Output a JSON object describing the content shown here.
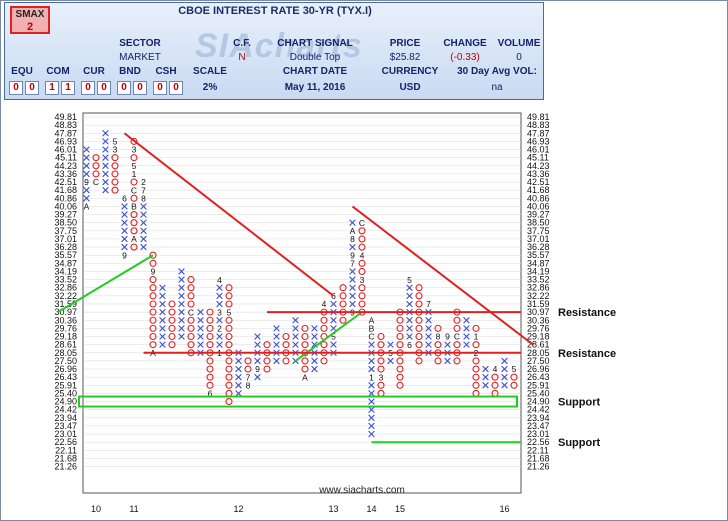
{
  "header": {
    "title": "CBOE INTEREST RATE 30-YR (TYX.I)",
    "smax_label": "SMAX",
    "smax_value": "2",
    "sector_label": "SECTOR",
    "sector_value": "MARKET",
    "cf_label": "C.F.",
    "cf_value": "N",
    "signal_label": "CHART SIGNAL",
    "signal_value": "Double Top",
    "price_label": "PRICE",
    "price_value": "$25.82",
    "change_label": "CHANGE",
    "change_value": "(-0.33)",
    "volume_label": "VOLUME",
    "volume_value": "0",
    "equ_label": "EQU",
    "com_label": "COM",
    "cur_label": "CUR",
    "bnd_label": "BND",
    "csh_label": "CSH",
    "scale_label": "SCALE",
    "scale_value": "2%",
    "chart_date_label": "CHART DATE",
    "chart_date_value": "May 11, 2016",
    "currency_label": "CURRENCY",
    "currency_value": "USD",
    "avgvol_label": "30 Day Avg VOL:",
    "avgvol_value": "na",
    "rank_cells": [
      "0",
      "0",
      "1",
      "1",
      "0",
      "0",
      "0",
      "0",
      "0",
      "0"
    ],
    "watermark": "SIAcharts",
    "colors": {
      "header_text": "#12246a",
      "smax_border": "#e02020",
      "value_red": "#c00000"
    }
  },
  "chart_data": {
    "type": "point-and-figure",
    "box_size_percent": 2,
    "price_levels": [
      "49.81",
      "48.83",
      "47.87",
      "46.93",
      "46.01",
      "45.11",
      "44.23",
      "43.36",
      "42.51",
      "41.68",
      "40.86",
      "40.06",
      "39.27",
      "38.50",
      "37.75",
      "37.01",
      "36.28",
      "35.57",
      "34.87",
      "34.19",
      "33.52",
      "32.86",
      "32.22",
      "31.59",
      "30.97",
      "30.36",
      "29.76",
      "29.18",
      "28.61",
      "28.05",
      "27.50",
      "26.96",
      "26.43",
      "25.91",
      "25.40",
      "24.90",
      "24.42",
      "23.94",
      "23.47",
      "23.01",
      "22.56",
      "22.11",
      "21.68",
      "21.26"
    ],
    "x_labels": [
      {
        "col": 1,
        "label": "10"
      },
      {
        "col": 5,
        "label": "11"
      },
      {
        "col": 16,
        "label": "12"
      },
      {
        "col": 26,
        "label": "13"
      },
      {
        "col": 30,
        "label": "14"
      },
      {
        "col": 33,
        "label": "15"
      },
      {
        "col": 44,
        "label": "16"
      }
    ],
    "columns": [
      {
        "col": 0,
        "type": "X",
        "low": 40.06,
        "high": 46.01,
        "labels": [
          {
            "price": 40.06,
            "text": "A"
          },
          {
            "price": 42.51,
            "text": "9"
          }
        ]
      },
      {
        "col": 1,
        "type": "O",
        "low": 42.51,
        "high": 45.11,
        "labels": [
          {
            "price": 42.51,
            "text": "C"
          }
        ]
      },
      {
        "col": 2,
        "type": "X",
        "low": 41.68,
        "high": 47.87
      },
      {
        "col": 3,
        "type": "O",
        "low": 41.68,
        "high": 46.93,
        "labels": [
          {
            "price": 46.93,
            "text": "5"
          },
          {
            "price": 46.01,
            "text": "3"
          }
        ]
      },
      {
        "col": 4,
        "type": "X",
        "low": 35.57,
        "high": 40.86,
        "labels": [
          {
            "price": 40.86,
            "text": "6"
          },
          {
            "price": 35.57,
            "text": "9"
          }
        ]
      },
      {
        "col": 5,
        "type": "O",
        "low": 36.28,
        "high": 46.93,
        "labels": [
          {
            "price": 46.01,
            "text": "3"
          },
          {
            "price": 44.23,
            "text": "5"
          },
          {
            "price": 43.36,
            "text": "1"
          },
          {
            "price": 41.68,
            "text": "C"
          },
          {
            "price": 40.06,
            "text": "B"
          },
          {
            "price": 37.01,
            "text": "A"
          }
        ]
      },
      {
        "col": 6,
        "type": "X",
        "low": 36.28,
        "high": 42.51,
        "labels": [
          {
            "price": 42.51,
            "text": "2"
          },
          {
            "price": 41.68,
            "text": "7"
          },
          {
            "price": 40.86,
            "text": "8"
          }
        ]
      },
      {
        "col": 7,
        "type": "O",
        "low": 28.05,
        "high": 35.57,
        "labels": [
          {
            "price": 34.19,
            "text": "9"
          },
          {
            "price": 28.05,
            "text": "A"
          }
        ]
      },
      {
        "col": 8,
        "type": "X",
        "low": 28.61,
        "high": 32.86
      },
      {
        "col": 9,
        "type": "O",
        "low": 28.61,
        "high": 31.59
      },
      {
        "col": 10,
        "type": "X",
        "low": 29.18,
        "high": 34.19
      },
      {
        "col": 11,
        "type": "O",
        "low": 28.05,
        "high": 33.52,
        "labels": [
          {
            "price": 30.97,
            "text": "C"
          }
        ]
      },
      {
        "col": 12,
        "type": "X",
        "low": 28.05,
        "high": 30.97
      },
      {
        "col": 13,
        "type": "O",
        "low": 25.4,
        "high": 30.97,
        "labels": [
          {
            "price": 25.4,
            "text": "6"
          }
        ]
      },
      {
        "col": 14,
        "type": "X",
        "low": 28.05,
        "high": 33.52,
        "labels": [
          {
            "price": 33.52,
            "text": "4"
          },
          {
            "price": 30.97,
            "text": "3"
          },
          {
            "price": 29.76,
            "text": "2"
          },
          {
            "price": 28.05,
            "text": "1"
          }
        ]
      },
      {
        "col": 15,
        "type": "O",
        "low": 24.9,
        "high": 32.86,
        "labels": [
          {
            "price": 30.97,
            "text": "5"
          }
        ]
      },
      {
        "col": 16,
        "type": "X",
        "low": 25.4,
        "high": 28.05
      },
      {
        "col": 17,
        "type": "O",
        "low": 25.91,
        "high": 27.5,
        "labels": [
          {
            "price": 26.43,
            "text": "7"
          },
          {
            "price": 25.91,
            "text": "8"
          }
        ]
      },
      {
        "col": 18,
        "type": "X",
        "low": 26.43,
        "high": 29.18,
        "labels": [
          {
            "price": 26.96,
            "text": "9"
          }
        ]
      },
      {
        "col": 19,
        "type": "O",
        "low": 26.96,
        "high": 28.61
      },
      {
        "col": 20,
        "type": "X",
        "low": 27.5,
        "high": 29.76
      },
      {
        "col": 21,
        "type": "O",
        "low": 27.5,
        "high": 29.18
      },
      {
        "col": 22,
        "type": "X",
        "low": 27.5,
        "high": 30.36
      },
      {
        "col": 23,
        "type": "O",
        "low": 26.43,
        "high": 29.76,
        "labels": [
          {
            "price": 26.43,
            "text": "A"
          }
        ]
      },
      {
        "col": 24,
        "type": "X",
        "low": 26.96,
        "high": 29.76
      },
      {
        "col": 25,
        "type": "O",
        "low": 27.5,
        "high": 31.59,
        "labels": [
          {
            "price": 31.59,
            "text": "4"
          }
        ]
      },
      {
        "col": 26,
        "type": "X",
        "low": 28.05,
        "high": 32.22,
        "labels": [
          {
            "price": 32.22,
            "text": "6"
          },
          {
            "price": 29.18,
            "text": "5"
          }
        ]
      },
      {
        "col": 27,
        "type": "O",
        "low": 30.36,
        "high": 32.86
      },
      {
        "col": 28,
        "type": "X",
        "low": 30.97,
        "high": 38.5,
        "labels": [
          {
            "price": 37.75,
            "text": "A"
          },
          {
            "price": 37.01,
            "text": "8"
          },
          {
            "price": 35.57,
            "text": "9"
          },
          {
            "price": 34.87,
            "text": "7"
          },
          {
            "price": 30.97,
            "text": "9"
          }
        ]
      },
      {
        "col": 29,
        "type": "O",
        "low": 30.97,
        "high": 38.5,
        "labels": [
          {
            "price": 38.5,
            "text": "C"
          },
          {
            "price": 35.57,
            "text": "4"
          },
          {
            "price": 33.52,
            "text": "3"
          }
        ]
      },
      {
        "col": 30,
        "type": "X",
        "low": 23.01,
        "high": 30.36,
        "labels": [
          {
            "price": 30.36,
            "text": "A"
          },
          {
            "price": 29.76,
            "text": "B"
          },
          {
            "price": 29.18,
            "text": "C"
          },
          {
            "price": 26.43,
            "text": "1"
          },
          {
            "price": 22.56,
            "text": "2"
          }
        ]
      },
      {
        "col": 31,
        "type": "O",
        "low": 25.4,
        "high": 29.18,
        "labels": [
          {
            "price": 26.43,
            "text": "3"
          },
          {
            "price": 24.9,
            "text": "4"
          }
        ]
      },
      {
        "col": 32,
        "type": "X",
        "low": 27.5,
        "high": 28.61,
        "labels": [
          {
            "price": 28.05,
            "text": "5"
          }
        ]
      },
      {
        "col": 33,
        "type": "O",
        "low": 25.91,
        "high": 30.97
      },
      {
        "col": 34,
        "type": "X",
        "low": 28.61,
        "high": 33.52,
        "labels": [
          {
            "price": 33.52,
            "text": "5"
          },
          {
            "price": 28.61,
            "text": "6"
          }
        ]
      },
      {
        "col": 35,
        "type": "O",
        "low": 27.5,
        "high": 32.86
      },
      {
        "col": 36,
        "type": "X",
        "low": 28.05,
        "high": 31.59,
        "labels": [
          {
            "price": 31.59,
            "text": "7"
          }
        ]
      },
      {
        "col": 37,
        "type": "O",
        "low": 27.5,
        "high": 29.76,
        "labels": [
          {
            "price": 29.18,
            "text": "8"
          }
        ]
      },
      {
        "col": 38,
        "type": "X",
        "low": 27.5,
        "high": 29.18,
        "labels": [
          {
            "price": 29.18,
            "text": "9"
          }
        ]
      },
      {
        "col": 39,
        "type": "O",
        "low": 27.5,
        "high": 30.97,
        "labels": [
          {
            "price": 29.18,
            "text": "C"
          }
        ]
      },
      {
        "col": 40,
        "type": "X",
        "low": 28.61,
        "high": 30.36
      },
      {
        "col": 41,
        "type": "O",
        "low": 25.4,
        "high": 29.76,
        "labels": [
          {
            "price": 29.18,
            "text": "1"
          },
          {
            "price": 28.05,
            "text": "2"
          }
        ]
      },
      {
        "col": 42,
        "type": "X",
        "low": 25.91,
        "high": 26.96
      },
      {
        "col": 43,
        "type": "O",
        "low": 25.4,
        "high": 26.96,
        "labels": [
          {
            "price": 26.96,
            "text": "4"
          }
        ]
      },
      {
        "col": 44,
        "type": "X",
        "low": 25.91,
        "high": 27.5
      },
      {
        "col": 45,
        "type": "O",
        "low": 25.91,
        "high": 26.96,
        "labels": [
          {
            "price": 26.96,
            "text": "5"
          }
        ]
      }
    ],
    "trendlines": [
      {
        "kind": "support",
        "color": "#22cc22",
        "from": {
          "col": -3,
          "price": 30.97
        },
        "to": {
          "col": 7,
          "price": 35.57
        }
      },
      {
        "kind": "support",
        "color": "#22cc22",
        "from": {
          "col": 22,
          "price": 27.5
        },
        "to": {
          "col": 29,
          "price": 30.97
        }
      },
      {
        "kind": "resistance",
        "color": "#e02020",
        "from": {
          "col": 4,
          "price": 47.87
        },
        "to": {
          "col": 26,
          "price": 32.22
        }
      },
      {
        "kind": "resistance",
        "color": "#e02020",
        "from": {
          "col": 28,
          "price": 40.06
        },
        "to": {
          "col": 47,
          "price": 28.61
        }
      }
    ],
    "levels": [
      {
        "label": "Resistance",
        "price": 30.97,
        "color": "#e02020"
      },
      {
        "label": "Resistance",
        "price": 28.05,
        "color": "#e02020"
      },
      {
        "label": "Support",
        "price": 24.9,
        "color": "#22cc22",
        "box": true
      },
      {
        "label": "Support",
        "price": 22.56,
        "color": "#22cc22"
      }
    ],
    "watermark_url": "www.siacharts.com",
    "colors": {
      "x": "#3a4fd0",
      "o": "#e02020",
      "month_label": "#111111",
      "grid": "#d8d8d8"
    }
  }
}
